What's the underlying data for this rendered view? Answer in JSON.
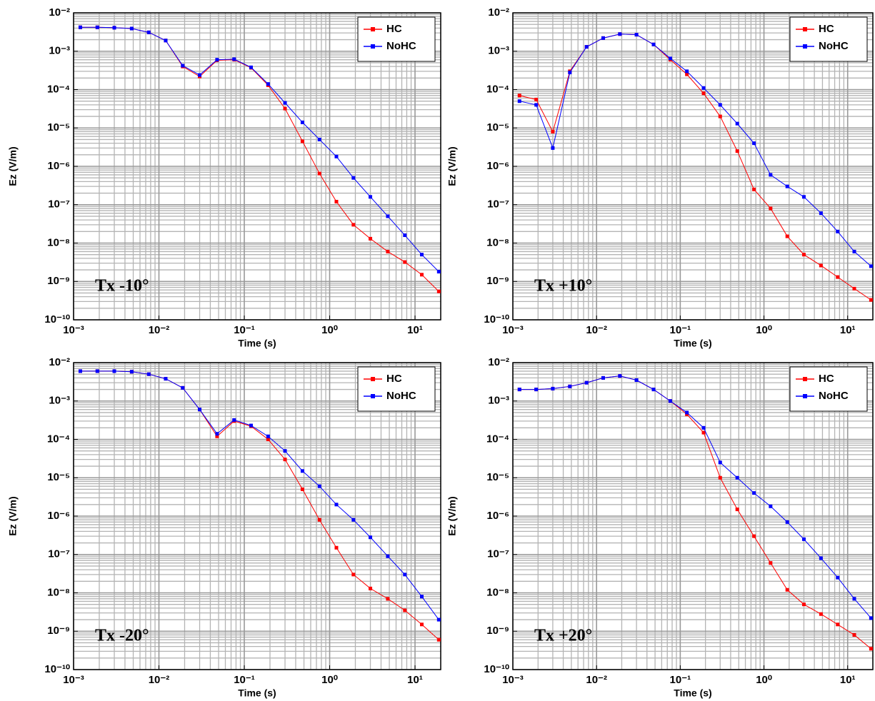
{
  "chart_data": [
    {
      "type": "line",
      "annotation": "Tx -10°",
      "xlabel": "Time (s)",
      "ylabel": "Ez (V/m)",
      "xscale": "log",
      "yscale": "log",
      "grid": true,
      "minor_grid": true,
      "legend": "upper right",
      "xlim": [
        0.001,
        20
      ],
      "ylim": [
        1e-10,
        0.01
      ],
      "xticks": [
        {
          "value": 0.001,
          "label": "10⁻³"
        },
        {
          "value": 0.01,
          "label": "10⁻²"
        },
        {
          "value": 0.1,
          "label": "10⁻¹"
        },
        {
          "value": 1,
          "label": "10⁰"
        },
        {
          "value": 10,
          "label": "10¹"
        }
      ],
      "yticks": [
        {
          "value": 1e-10,
          "label": "10⁻¹⁰"
        },
        {
          "value": 1e-09,
          "label": "10⁻⁹"
        },
        {
          "value": 1e-08,
          "label": "10⁻⁸"
        },
        {
          "value": 1e-07,
          "label": "10⁻⁷"
        },
        {
          "value": 1e-06,
          "label": "10⁻⁶"
        },
        {
          "value": 1e-05,
          "label": "10⁻⁵"
        },
        {
          "value": 0.0001,
          "label": "10⁻⁴"
        },
        {
          "value": 0.001,
          "label": "10⁻³"
        },
        {
          "value": 0.01,
          "label": "10⁻²"
        }
      ],
      "x": [
        0.0012,
        0.0019,
        0.003,
        0.0048,
        0.0076,
        0.012,
        0.019,
        0.03,
        0.048,
        0.076,
        0.12,
        0.19,
        0.3,
        0.48,
        0.76,
        1.2,
        1.9,
        3,
        4.8,
        7.6,
        12,
        19
      ],
      "series": [
        {
          "name": "HC",
          "color": "#ff0000",
          "values": [
            0.0042,
            0.0042,
            0.0041,
            0.0039,
            0.0031,
            0.0019,
            0.0004,
            0.00022,
            0.00058,
            0.0006,
            0.00037,
            0.00013,
            3.2e-05,
            4.5e-06,
            6.5e-07,
            1.2e-07,
            3e-08,
            1.3e-08,
            6e-09,
            3.2e-09,
            1.5e-09,
            5.5e-10
          ]
        },
        {
          "name": "NoHC",
          "color": "#0000ff",
          "values": [
            0.0042,
            0.0042,
            0.0041,
            0.0039,
            0.0031,
            0.0019,
            0.00042,
            0.00024,
            0.0006,
            0.00062,
            0.00038,
            0.00014,
            4.5e-05,
            1.4e-05,
            5e-06,
            1.8e-06,
            5e-07,
            1.6e-07,
            5e-08,
            1.6e-08,
            5e-09,
            1.8e-09
          ]
        }
      ]
    },
    {
      "type": "line",
      "annotation": "Tx +10°",
      "xlabel": "Time (s)",
      "ylabel": "Ez (V/m)",
      "xscale": "log",
      "yscale": "log",
      "grid": true,
      "minor_grid": true,
      "legend": "upper right",
      "xlim": [
        0.001,
        20
      ],
      "ylim": [
        1e-10,
        0.01
      ],
      "xticks": [
        {
          "value": 0.001,
          "label": "10⁻³"
        },
        {
          "value": 0.01,
          "label": "10⁻²"
        },
        {
          "value": 0.1,
          "label": "10⁻¹"
        },
        {
          "value": 1,
          "label": "10⁰"
        },
        {
          "value": 10,
          "label": "10¹"
        }
      ],
      "yticks": [
        {
          "value": 1e-10,
          "label": "10⁻¹⁰"
        },
        {
          "value": 1e-09,
          "label": "10⁻⁹"
        },
        {
          "value": 1e-08,
          "label": "10⁻⁸"
        },
        {
          "value": 1e-07,
          "label": "10⁻⁷"
        },
        {
          "value": 1e-06,
          "label": "10⁻⁶"
        },
        {
          "value": 1e-05,
          "label": "10⁻⁵"
        },
        {
          "value": 0.0001,
          "label": "10⁻⁴"
        },
        {
          "value": 0.001,
          "label": "10⁻³"
        },
        {
          "value": 0.01,
          "label": "10⁻²"
        }
      ],
      "x": [
        0.0012,
        0.0019,
        0.003,
        0.0048,
        0.0076,
        0.012,
        0.019,
        0.03,
        0.048,
        0.076,
        0.12,
        0.19,
        0.3,
        0.48,
        0.76,
        1.2,
        1.9,
        3,
        4.8,
        7.6,
        12,
        19
      ],
      "series": [
        {
          "name": "HC",
          "color": "#ff0000",
          "values": [
            7e-05,
            5.5e-05,
            8e-06,
            0.0003,
            0.0013,
            0.0022,
            0.0028,
            0.0027,
            0.0015,
            0.0006,
            0.00025,
            8e-05,
            2e-05,
            2.5e-06,
            2.5e-07,
            8e-08,
            1.5e-08,
            5e-09,
            2.6e-09,
            1.3e-09,
            6.5e-10,
            3.3e-10
          ]
        },
        {
          "name": "NoHC",
          "color": "#0000ff",
          "values": [
            5e-05,
            4e-05,
            3e-06,
            0.00028,
            0.0013,
            0.0022,
            0.0028,
            0.0027,
            0.0015,
            0.00065,
            0.0003,
            0.00011,
            4e-05,
            1.3e-05,
            4e-06,
            6e-07,
            3e-07,
            1.6e-07,
            6e-08,
            2e-08,
            6e-09,
            2.5e-09
          ]
        }
      ]
    },
    {
      "type": "line",
      "annotation": "Tx -20°",
      "xlabel": "Time (s)",
      "ylabel": "Ez (V/m)",
      "xscale": "log",
      "yscale": "log",
      "grid": true,
      "minor_grid": true,
      "legend": "upper right",
      "xlim": [
        0.001,
        20
      ],
      "ylim": [
        1e-10,
        0.01
      ],
      "xticks": [
        {
          "value": 0.001,
          "label": "10⁻³"
        },
        {
          "value": 0.01,
          "label": "10⁻²"
        },
        {
          "value": 0.1,
          "label": "10⁻¹"
        },
        {
          "value": 1,
          "label": "10⁰"
        },
        {
          "value": 10,
          "label": "10¹"
        }
      ],
      "yticks": [
        {
          "value": 1e-10,
          "label": "10⁻¹⁰"
        },
        {
          "value": 1e-09,
          "label": "10⁻⁹"
        },
        {
          "value": 1e-08,
          "label": "10⁻⁸"
        },
        {
          "value": 1e-07,
          "label": "10⁻⁷"
        },
        {
          "value": 1e-06,
          "label": "10⁻⁶"
        },
        {
          "value": 1e-05,
          "label": "10⁻⁵"
        },
        {
          "value": 0.0001,
          "label": "10⁻⁴"
        },
        {
          "value": 0.001,
          "label": "10⁻³"
        },
        {
          "value": 0.01,
          "label": "10⁻²"
        }
      ],
      "x": [
        0.0012,
        0.0019,
        0.003,
        0.0048,
        0.0076,
        0.012,
        0.019,
        0.03,
        0.048,
        0.076,
        0.12,
        0.19,
        0.3,
        0.48,
        0.76,
        1.2,
        1.9,
        3,
        4.8,
        7.6,
        12,
        19
      ],
      "series": [
        {
          "name": "HC",
          "color": "#ff0000",
          "values": [
            0.006,
            0.006,
            0.006,
            0.0058,
            0.005,
            0.0038,
            0.0022,
            0.0006,
            0.00012,
            0.0003,
            0.00022,
            0.0001,
            3e-05,
            5e-06,
            8e-07,
            1.5e-07,
            3e-08,
            1.3e-08,
            7e-09,
            3.5e-09,
            1.5e-09,
            6e-10
          ]
        },
        {
          "name": "NoHC",
          "color": "#0000ff",
          "values": [
            0.006,
            0.006,
            0.006,
            0.0058,
            0.005,
            0.0038,
            0.0022,
            0.0006,
            0.00014,
            0.00032,
            0.00023,
            0.00012,
            5e-05,
            1.5e-05,
            6e-06,
            2e-06,
            8e-07,
            2.8e-07,
            9e-08,
            3e-08,
            8e-09,
            2e-09
          ]
        }
      ]
    },
    {
      "type": "line",
      "annotation": "Tx +20°",
      "xlabel": "Time (s)",
      "ylabel": "Ez (V/m)",
      "xscale": "log",
      "yscale": "log",
      "grid": true,
      "minor_grid": true,
      "legend": "upper right",
      "xlim": [
        0.001,
        20
      ],
      "ylim": [
        1e-10,
        0.01
      ],
      "xticks": [
        {
          "value": 0.001,
          "label": "10⁻³"
        },
        {
          "value": 0.01,
          "label": "10⁻²"
        },
        {
          "value": 0.1,
          "label": "10⁻¹"
        },
        {
          "value": 1,
          "label": "10⁰"
        },
        {
          "value": 10,
          "label": "10¹"
        }
      ],
      "yticks": [
        {
          "value": 1e-10,
          "label": "10⁻¹⁰"
        },
        {
          "value": 1e-09,
          "label": "10⁻⁹"
        },
        {
          "value": 1e-08,
          "label": "10⁻⁸"
        },
        {
          "value": 1e-07,
          "label": "10⁻⁷"
        },
        {
          "value": 1e-06,
          "label": "10⁻⁶"
        },
        {
          "value": 1e-05,
          "label": "10⁻⁵"
        },
        {
          "value": 0.0001,
          "label": "10⁻⁴"
        },
        {
          "value": 0.001,
          "label": "10⁻³"
        },
        {
          "value": 0.01,
          "label": "10⁻²"
        }
      ],
      "x": [
        0.0012,
        0.0019,
        0.003,
        0.0048,
        0.0076,
        0.012,
        0.019,
        0.03,
        0.048,
        0.076,
        0.12,
        0.19,
        0.3,
        0.48,
        0.76,
        1.2,
        1.9,
        3,
        4.8,
        7.6,
        12,
        19
      ],
      "series": [
        {
          "name": "HC",
          "color": "#ff0000",
          "values": [
            0.002,
            0.002,
            0.0021,
            0.0024,
            0.003,
            0.004,
            0.0045,
            0.0035,
            0.002,
            0.001,
            0.00045,
            0.00015,
            1e-05,
            1.5e-06,
            3e-07,
            6e-08,
            1.2e-08,
            5e-09,
            2.8e-09,
            1.5e-09,
            8e-10,
            3.5e-10
          ]
        },
        {
          "name": "NoHC",
          "color": "#0000ff",
          "values": [
            0.002,
            0.002,
            0.0021,
            0.0024,
            0.003,
            0.004,
            0.0045,
            0.0035,
            0.002,
            0.001,
            0.0005,
            0.0002,
            2.5e-05,
            1e-05,
            4e-06,
            1.8e-06,
            7e-07,
            2.5e-07,
            8e-08,
            2.5e-08,
            7e-09,
            2.2e-09
          ]
        }
      ]
    }
  ]
}
